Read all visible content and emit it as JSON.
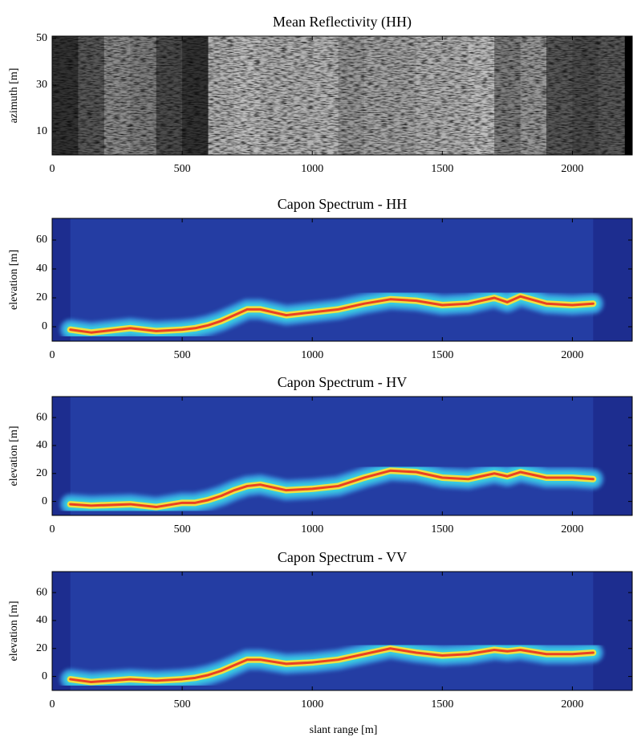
{
  "chart_data": [
    {
      "type": "intensity",
      "title": "Mean Reflectivity (HH)",
      "y_label": "azimuth [m]",
      "x": [
        50,
        150,
        250,
        350,
        450,
        550,
        650,
        750,
        850,
        950,
        1050,
        1150,
        1250,
        1350,
        1450,
        1550,
        1650,
        1750,
        1850,
        1950,
        2050,
        2150
      ],
      "values": [
        0.2,
        0.35,
        0.55,
        0.5,
        0.3,
        0.2,
        0.7,
        0.75,
        0.7,
        0.7,
        0.72,
        0.6,
        0.65,
        0.65,
        0.7,
        0.7,
        0.75,
        0.5,
        0.6,
        0.35,
        0.3,
        0.35
      ],
      "xlim": [
        0,
        2230
      ],
      "ylim": [
        0,
        51
      ],
      "xticks": [
        0,
        500,
        1000,
        1500,
        2000
      ],
      "yticks": [
        10,
        30,
        50
      ]
    },
    {
      "type": "spectrum",
      "title": "Capon Spectrum - HH",
      "y_label": "elevation [m]",
      "x": [
        70,
        150,
        300,
        400,
        500,
        550,
        600,
        650,
        700,
        750,
        800,
        900,
        1000,
        1100,
        1200,
        1300,
        1400,
        1500,
        1600,
        1700,
        1750,
        1800,
        1900,
        2000,
        2080
      ],
      "values": [
        -2,
        -4,
        -1,
        -3,
        -2,
        -1,
        1,
        4,
        8,
        12,
        12,
        8,
        10,
        12,
        16,
        19,
        18,
        15,
        16,
        20,
        17,
        21,
        16,
        15,
        16
      ],
      "xlim": [
        0,
        2230
      ],
      "ylim": [
        -10,
        75
      ],
      "xticks": [
        0,
        500,
        1000,
        1500,
        2000
      ],
      "yticks": [
        0,
        20,
        40,
        60
      ]
    },
    {
      "type": "spectrum",
      "title": "Capon Spectrum - HV",
      "y_label": "elevation [m]",
      "x": [
        70,
        150,
        300,
        400,
        500,
        550,
        600,
        650,
        700,
        750,
        800,
        900,
        1000,
        1100,
        1200,
        1300,
        1400,
        1500,
        1600,
        1700,
        1750,
        1800,
        1900,
        2000,
        2080
      ],
      "values": [
        -2,
        -3,
        -2,
        -4,
        -1,
        -1,
        1,
        4,
        8,
        11,
        12,
        8,
        9,
        11,
        17,
        22,
        21,
        17,
        16,
        20,
        18,
        21,
        17,
        17,
        16
      ],
      "xlim": [
        0,
        2230
      ],
      "ylim": [
        -10,
        75
      ],
      "xticks": [
        0,
        500,
        1000,
        1500,
        2000
      ],
      "yticks": [
        0,
        20,
        40,
        60
      ]
    },
    {
      "type": "spectrum",
      "title": "Capon Spectrum - VV",
      "y_label": "elevation [m]",
      "x": [
        70,
        150,
        300,
        400,
        500,
        550,
        600,
        650,
        700,
        750,
        800,
        900,
        1000,
        1100,
        1200,
        1300,
        1400,
        1500,
        1600,
        1700,
        1750,
        1800,
        1900,
        2000,
        2080
      ],
      "values": [
        -2,
        -4,
        -2,
        -3,
        -2,
        -1,
        1,
        4,
        8,
        12,
        12,
        9,
        10,
        12,
        16,
        20,
        17,
        15,
        16,
        19,
        18,
        19,
        16,
        16,
        17
      ],
      "xlim": [
        0,
        2230
      ],
      "ylim": [
        -10,
        75
      ],
      "xticks": [
        0,
        500,
        1000,
        1500,
        2000
      ],
      "yticks": [
        0,
        20,
        40,
        60
      ]
    }
  ],
  "x_label": "slant range [m]"
}
